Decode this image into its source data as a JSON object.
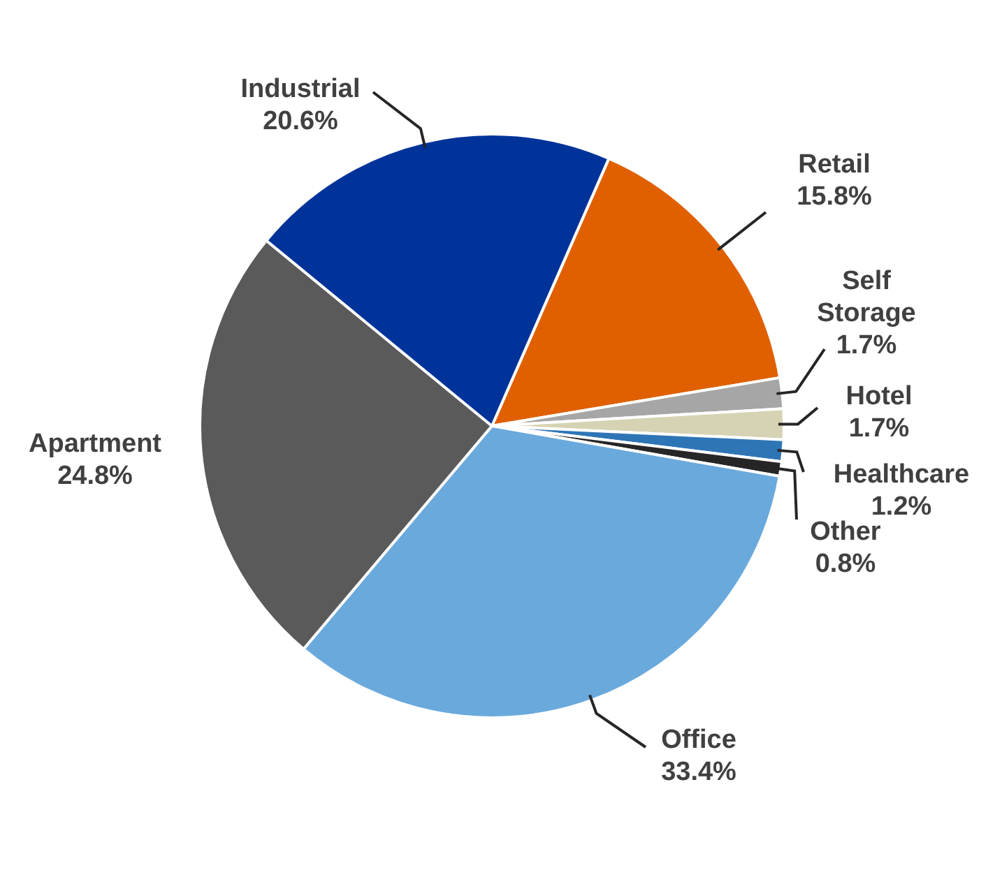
{
  "chart_data": {
    "type": "pie",
    "categories": [
      "Retail",
      "Self Storage",
      "Hotel",
      "Healthcare",
      "Other",
      "Office",
      "Apartment",
      "Industrial"
    ],
    "values": [
      15.8,
      1.7,
      1.7,
      1.2,
      0.8,
      33.4,
      24.8,
      20.6
    ],
    "value_labels": [
      "15.8%",
      "1.7%",
      "1.7%",
      "1.2%",
      "0.8%",
      "33.4%",
      "24.8%",
      "20.6%"
    ],
    "colors": [
      "#e06000",
      "#a6a6a6",
      "#d6d3b4",
      "#2e75b6",
      "#262626",
      "#6aa9dc",
      "#5a5a5a",
      "#003399"
    ],
    "legend": false
  }
}
